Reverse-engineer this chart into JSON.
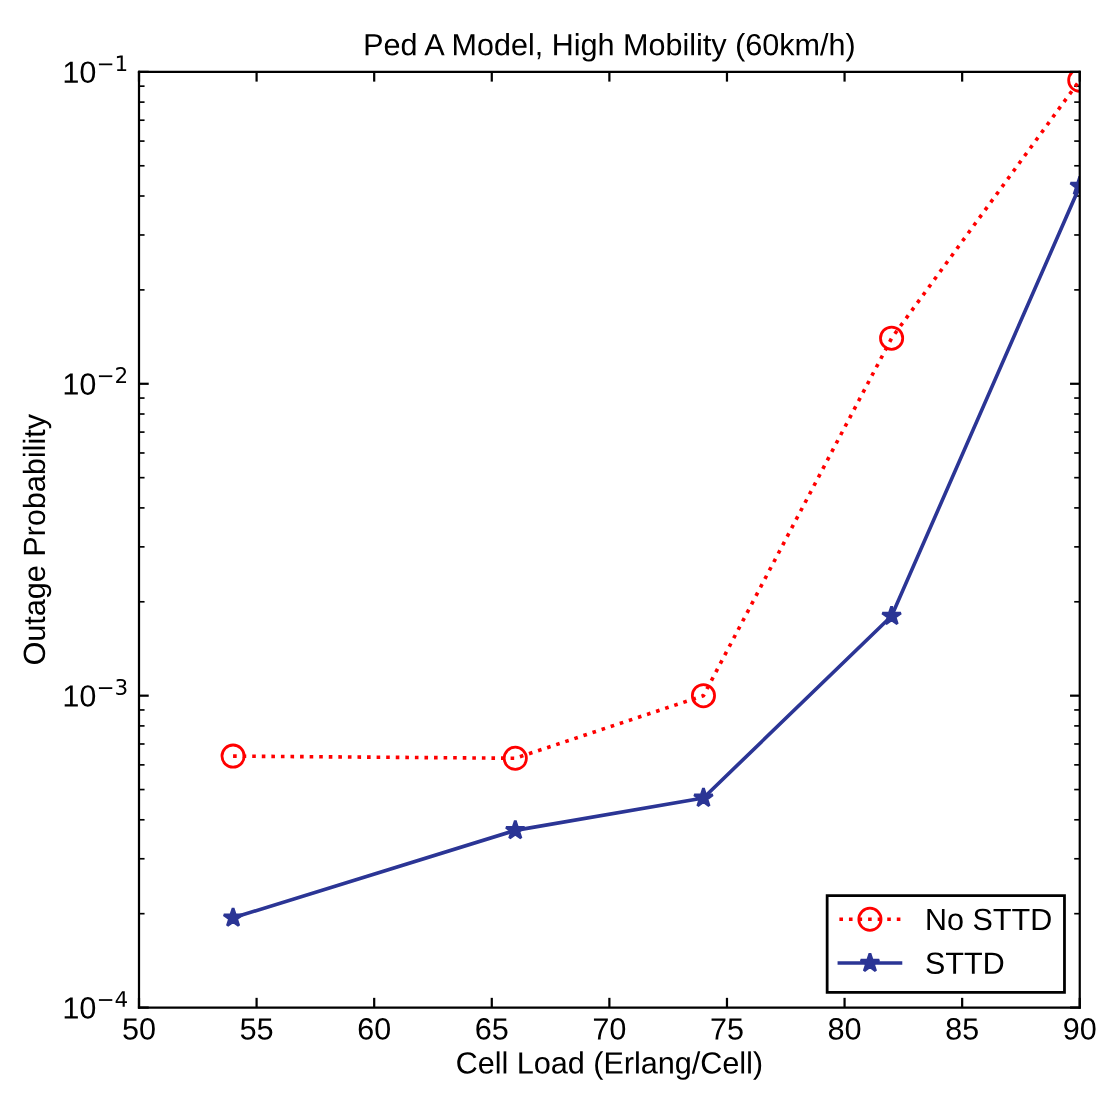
{
  "chart_data": {
    "type": "line",
    "title": "Ped A Model, High Mobility (60km/h)",
    "xlabel": "Cell Load (Erlang/Cell)",
    "ylabel": "Outage Probability",
    "x": [
      54,
      66,
      74,
      82,
      90
    ],
    "series": [
      {
        "name": "No STTD",
        "color": "#ff0000",
        "values": [
          0.00064,
          0.00063,
          0.001,
          0.014,
          0.094
        ],
        "marker": "circle",
        "line_style": "dotted"
      },
      {
        "name": "STTD",
        "color": "#2b3595",
        "values": [
          0.000194,
          0.00037,
          0.00047,
          0.0018,
          0.043
        ],
        "marker": "star",
        "line_style": "solid"
      }
    ],
    "log": "y",
    "xlim": [
      50,
      90
    ],
    "xticks": [
      50,
      55,
      60,
      65,
      70,
      75,
      80,
      85,
      90
    ],
    "ylim": [
      0.0001,
      0.1
    ],
    "yticks": [
      {
        "value": 0.0001,
        "label": "10$^{−4}$"
      },
      {
        "value": 0.001,
        "label": "10$^{−3}$"
      },
      {
        "value": 0.01,
        "label": "10$^{−2}$"
      },
      {
        "value": 0.1,
        "label": "10$^{−1}$"
      }
    ],
    "legend": "bottom right",
    "grid": false
  }
}
